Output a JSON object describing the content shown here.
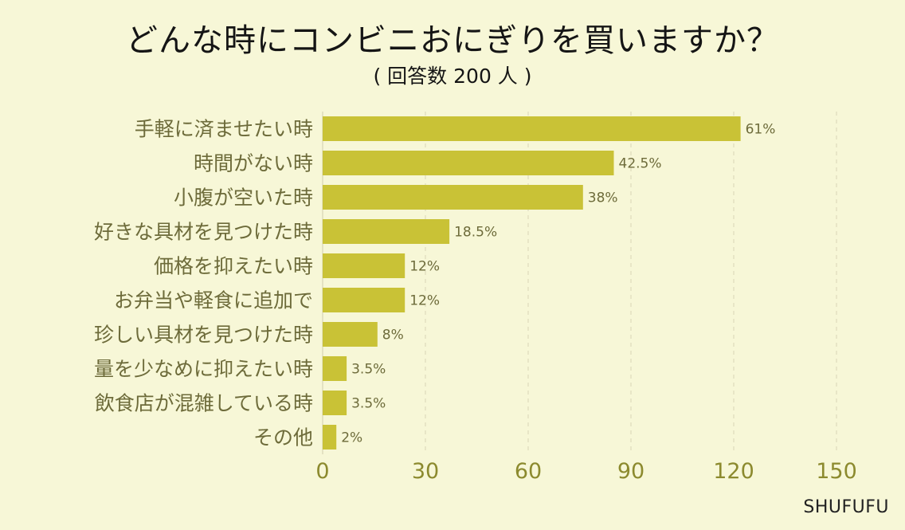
{
  "chart_data": {
    "type": "bar",
    "orientation": "horizontal",
    "title": "どんな時にコンビニおにぎりを買いますか？",
    "subtitle": "( 回答数 200 人 )",
    "categories": [
      "手軽に済ませたい時",
      "時間がない時",
      "小腹が空いた時",
      "好きな具材を見つけた時",
      "価格を抑えたい時",
      "お弁当や軽食に追加で",
      "珍しい具材を見つけた時",
      "量を少なめに抑えたい時",
      "飲食店が混雑している時",
      "その他"
    ],
    "values": [
      122,
      85,
      76,
      37,
      24,
      24,
      16,
      7,
      7,
      4
    ],
    "data_labels": [
      "61%",
      "42.5%",
      "38%",
      "18.5%",
      "12%",
      "12%",
      "8%",
      "3.5%",
      "3.5%",
      "2%"
    ],
    "xlim": [
      0,
      150
    ],
    "xticks": [
      0,
      30,
      60,
      90,
      120,
      150
    ],
    "xtick_labels": [
      "0",
      "30",
      "60",
      "90",
      "120",
      "150"
    ],
    "grid": true,
    "legend": "none",
    "xlabel": "",
    "ylabel": ""
  },
  "brand": "SHUFUFU",
  "colors": {
    "background": "#f7f7d7",
    "bar": "#c9c236",
    "axis_text": "#8c8a2e",
    "category_text": "#6d6b3a",
    "value_label": "#6d6b3a",
    "grid": "#dedcbc"
  }
}
